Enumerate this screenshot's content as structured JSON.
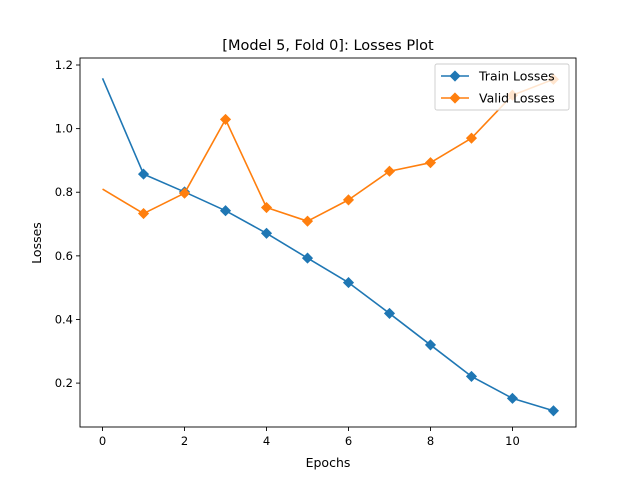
{
  "chart_data": {
    "type": "line",
    "title": "[Model 5, Fold 0]: Losses Plot",
    "xlabel": "Epochs",
    "ylabel": "Losses",
    "xlim": [
      -0.55,
      11.55
    ],
    "ylim": [
      0.062,
      1.222
    ],
    "xticks": [
      0,
      2,
      4,
      6,
      8,
      10
    ],
    "yticks": [
      0.2,
      0.4,
      0.6,
      0.8,
      1.0,
      1.2
    ],
    "xtick_labels": [
      "0",
      "2",
      "4",
      "6",
      "8",
      "10"
    ],
    "ytick_labels": [
      "0.2",
      "0.4",
      "0.6",
      "0.8",
      "1.0",
      "1.2"
    ],
    "grid": false,
    "legend_position": "top-right",
    "x": [
      0,
      1,
      2,
      3,
      4,
      5,
      6,
      7,
      8,
      9,
      10,
      11
    ],
    "series": [
      {
        "name": "Train Losses",
        "color": "#1f77b4",
        "marker": "diamond",
        "marker_start_index": 1,
        "values": [
          1.158,
          0.857,
          0.801,
          0.742,
          0.671,
          0.593,
          0.516,
          0.419,
          0.32,
          0.221,
          0.152,
          0.113
        ]
      },
      {
        "name": "Valid Losses",
        "color": "#ff7f0e",
        "marker": "diamond",
        "marker_start_index": 1,
        "values": [
          0.81,
          0.733,
          0.797,
          1.029,
          0.752,
          0.709,
          0.776,
          0.866,
          0.893,
          0.97,
          1.105,
          1.155
        ]
      }
    ]
  }
}
